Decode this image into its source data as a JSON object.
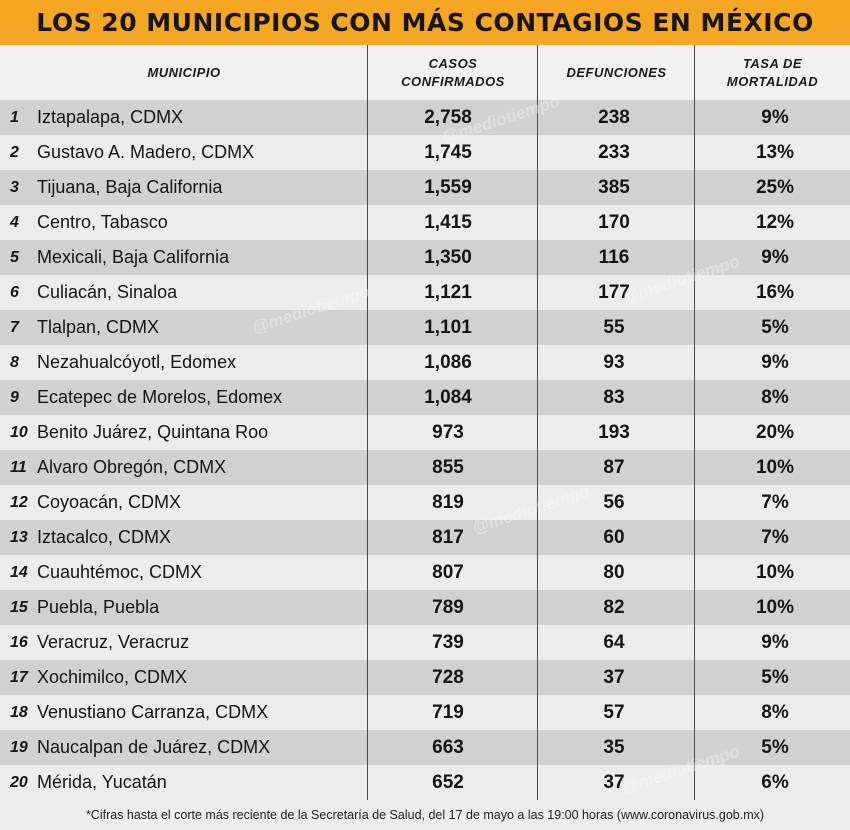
{
  "title": "LOS 20 MUNICIPIOS CON MÁS CONTAGIOS EN MÉXICO",
  "columns": {
    "municipio": "MUNICIPIO",
    "casos_line1": "CASOS",
    "casos_line2": "CONFIRMADOS",
    "defunciones": "DEFUNCIONES",
    "tasa_line1": "TASA DE",
    "tasa_line2": "MORTALIDAD"
  },
  "rows": [
    {
      "n": "1",
      "municipio": "Iztapalapa, CDMX",
      "casos": "2,758",
      "defunciones": "238",
      "tasa": "9%"
    },
    {
      "n": "2",
      "municipio": "Gustavo A. Madero, CDMX",
      "casos": "1,745",
      "defunciones": "233",
      "tasa": "13%"
    },
    {
      "n": "3",
      "municipio": "Tijuana, Baja California",
      "casos": "1,559",
      "defunciones": "385",
      "tasa": "25%"
    },
    {
      "n": "4",
      "municipio": "Centro, Tabasco",
      "casos": "1,415",
      "defunciones": "170",
      "tasa": "12%"
    },
    {
      "n": "5",
      "municipio": "Mexicali, Baja California",
      "casos": "1,350",
      "defunciones": "116",
      "tasa": "9%"
    },
    {
      "n": "6",
      "municipio": "Culiacán, Sinaloa",
      "casos": "1,121",
      "defunciones": "177",
      "tasa": "16%"
    },
    {
      "n": "7",
      "municipio": "Tlalpan, CDMX",
      "casos": "1,101",
      "defunciones": "55",
      "tasa": "5%"
    },
    {
      "n": "8",
      "municipio": "Nezahualcóyotl, Edomex",
      "casos": "1,086",
      "defunciones": "93",
      "tasa": "9%"
    },
    {
      "n": "9",
      "municipio": "Ecatepec de Morelos, Edomex",
      "casos": "1,084",
      "defunciones": "83",
      "tasa": "8%"
    },
    {
      "n": "10",
      "municipio": "Benito Juárez, Quintana Roo",
      "casos": "973",
      "defunciones": "193",
      "tasa": "20%"
    },
    {
      "n": "11",
      "municipio": "Alvaro Obregón, CDMX",
      "casos": "855",
      "defunciones": "87",
      "tasa": "10%"
    },
    {
      "n": "12",
      "municipio": "Coyoacán, CDMX",
      "casos": "819",
      "defunciones": "56",
      "tasa": "7%"
    },
    {
      "n": "13",
      "municipio": "Iztacalco, CDMX",
      "casos": "817",
      "defunciones": "60",
      "tasa": "7%"
    },
    {
      "n": "14",
      "municipio": "Cuauhtémoc, CDMX",
      "casos": "807",
      "defunciones": "80",
      "tasa": "10%"
    },
    {
      "n": "15",
      "municipio": "Puebla, Puebla",
      "casos": "789",
      "defunciones": "82",
      "tasa": "10%"
    },
    {
      "n": "16",
      "municipio": "Veracruz, Veracruz",
      "casos": "739",
      "defunciones": "64",
      "tasa": "9%"
    },
    {
      "n": "17",
      "municipio": "Xochimilco, CDMX",
      "casos": "728",
      "defunciones": "37",
      "tasa": "5%"
    },
    {
      "n": "18",
      "municipio": "Venustiano Carranza, CDMX",
      "casos": "719",
      "defunciones": "57",
      "tasa": "8%"
    },
    {
      "n": "19",
      "municipio": "Naucalpan de Juárez, CDMX",
      "casos": "663",
      "defunciones": "35",
      "tasa": "5%"
    },
    {
      "n": "20",
      "municipio": "Mérida, Yucatán",
      "casos": "652",
      "defunciones": "37",
      "tasa": "6%"
    }
  ],
  "footer": "*Cifras hasta el corte más reciente de la Secretaría de Salud, del 17 de mayo a las 19:00 horas (www.coronavirus.gob.mx)",
  "watermark": "mediotiempo",
  "colors": {
    "title_bg": "#f5a623",
    "row_dark": "#d1d1d1",
    "row_light": "#ececec"
  }
}
